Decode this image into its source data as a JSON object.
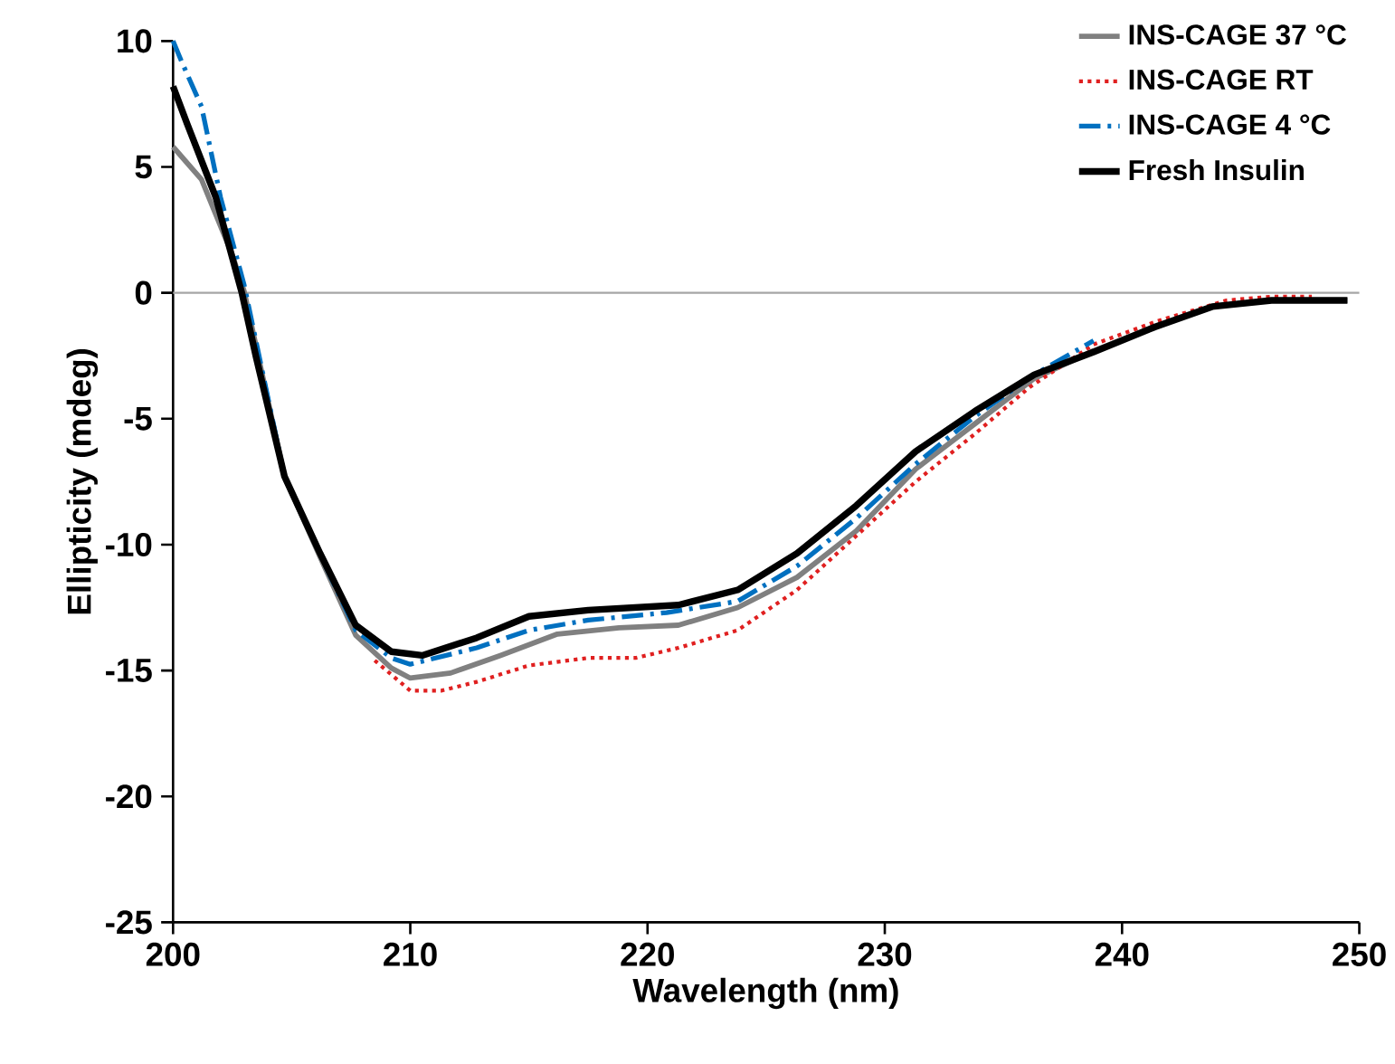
{
  "chart_data": {
    "type": "line",
    "xlabel": "Wavelength (nm)",
    "ylabel": "Ellipticity (mdeg)",
    "xlim": [
      200,
      250
    ],
    "ylim": [
      -25,
      10
    ],
    "xticks": [
      200,
      210,
      220,
      230,
      240,
      250
    ],
    "yticks": [
      -25,
      -20,
      -15,
      -10,
      -5,
      0,
      5,
      10
    ],
    "grid": false,
    "legend": "top right",
    "marker": "none",
    "ref_lines": [
      {
        "axis": "y",
        "value": 0,
        "color": "#a6a6a6"
      }
    ],
    "series": [
      {
        "name": "INS-CAGE 37 °C",
        "color": "#808080",
        "line_style": "solid",
        "x": [
          200,
          201.2,
          202.5,
          203,
          204.7,
          206.2,
          207.7,
          209.2,
          210,
          211.7,
          213.8,
          216.2,
          218.8,
          221.3,
          223.8,
          226.3,
          228.8,
          231.3,
          233.8,
          236.3,
          238.8,
          241.4,
          243.8,
          246.3,
          249.5
        ],
        "values": [
          5.8,
          4.5,
          1.5,
          0.05,
          -7.3,
          -10.5,
          -13.6,
          -14.9,
          -15.3,
          -15.1,
          -14.4,
          -13.55,
          -13.3,
          -13.2,
          -12.5,
          -11.3,
          -9.45,
          -7.0,
          -5.2,
          -3.4,
          -2.3,
          -1.35,
          -0.55,
          -0.3,
          -0.3
        ]
      },
      {
        "name": "INS-CAGE RT",
        "color": "#e02020",
        "line_style": "dotted",
        "x": [
          208.5,
          210,
          211.3,
          212.8,
          215,
          217.5,
          219.5,
          221.3,
          223.8,
          226.3,
          228.8,
          231.3,
          233.8,
          236.1,
          238.8,
          241.4,
          244.4,
          246.3,
          248
        ],
        "values": [
          -14.6,
          -15.8,
          -15.8,
          -15.45,
          -14.8,
          -14.5,
          -14.5,
          -14.1,
          -13.4,
          -11.8,
          -9.65,
          -7.5,
          -5.6,
          -3.75,
          -2.05,
          -1.15,
          -0.3,
          -0.15,
          -0.15
        ]
      },
      {
        "name": "INS-CAGE 4 °C",
        "color": "#0070c0",
        "line_style": "dashdot",
        "x": [
          200,
          200.4,
          201.2,
          202,
          203,
          204.7,
          206.2,
          207.7,
          209.2,
          210,
          212.8,
          215,
          217.5,
          220.8,
          223.8,
          226.3,
          228.8,
          231.3,
          233.8,
          236.3,
          238.8
        ],
        "values": [
          10,
          9.1,
          7.4,
          3.8,
          0.3,
          -7.3,
          -10.4,
          -13.4,
          -14.5,
          -14.75,
          -14.1,
          -13.4,
          -13.0,
          -12.7,
          -12.25,
          -10.85,
          -8.95,
          -6.8,
          -4.9,
          -3.25,
          -1.9
        ]
      },
      {
        "name": "Fresh Insulin",
        "color": "#000000",
        "line_style": "solid",
        "x": [
          200,
          200.6,
          201.8,
          202.9,
          203.5,
          204.7,
          206.2,
          207.7,
          209.2,
          210.5,
          212.8,
          215,
          217.5,
          221.3,
          223.8,
          226.3,
          228.8,
          231.3,
          233.8,
          236.3,
          238.8,
          241.4,
          243.8,
          246.3,
          249.5
        ],
        "values": [
          8.2,
          6.7,
          3.8,
          0,
          -2.55,
          -7.3,
          -10.35,
          -13.2,
          -14.25,
          -14.4,
          -13.7,
          -12.85,
          -12.6,
          -12.4,
          -11.8,
          -10.35,
          -8.45,
          -6.3,
          -4.7,
          -3.25,
          -2.35,
          -1.35,
          -0.55,
          -0.3,
          -0.3
        ]
      }
    ]
  }
}
